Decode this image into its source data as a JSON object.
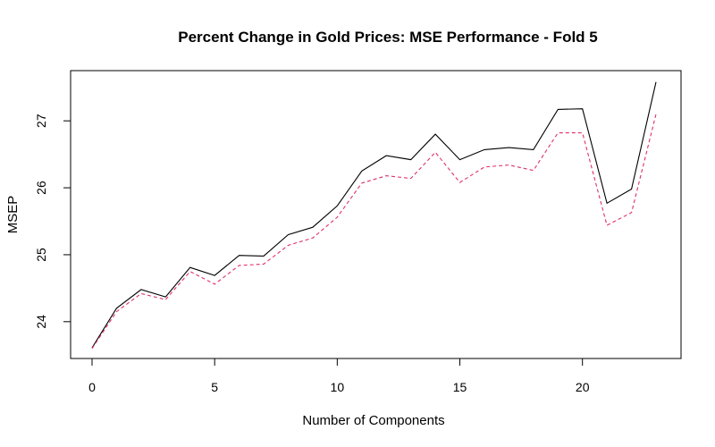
{
  "chart_data": {
    "type": "line",
    "title": "Percent Change in Gold Prices: MSE Performance - Fold 5",
    "xlabel": "Number of Components",
    "ylabel": "MSEP",
    "xlim": [
      0,
      23
    ],
    "ylim": [
      23.45,
      27.75
    ],
    "x_ticks": [
      0,
      5,
      10,
      15,
      20
    ],
    "y_ticks": [
      24,
      25,
      26,
      27
    ],
    "grid": false,
    "legend": "none",
    "x": [
      0,
      1,
      2,
      3,
      4,
      5,
      6,
      7,
      8,
      9,
      10,
      11,
      12,
      13,
      14,
      15,
      16,
      17,
      18,
      19,
      20,
      21,
      22,
      23
    ],
    "series": [
      {
        "color": "#000000",
        "line_style": "solid",
        "values": [
          23.61,
          24.2,
          24.48,
          24.37,
          24.81,
          24.69,
          24.99,
          24.98,
          25.3,
          25.41,
          25.73,
          26.25,
          26.48,
          26.42,
          26.8,
          26.42,
          26.57,
          26.6,
          26.57,
          27.17,
          27.18,
          25.77,
          25.98,
          27.58
        ]
      },
      {
        "color": "#e0306a",
        "line_style": "dashed",
        "values": [
          23.6,
          24.15,
          24.42,
          24.33,
          24.75,
          24.56,
          24.84,
          24.86,
          25.14,
          25.25,
          25.56,
          26.07,
          26.18,
          26.14,
          26.53,
          26.08,
          26.31,
          26.34,
          26.26,
          26.82,
          26.82,
          25.44,
          25.63,
          27.1
        ]
      }
    ]
  }
}
